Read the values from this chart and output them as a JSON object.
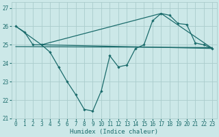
{
  "xlabel": "Humidex (Indice chaleur)",
  "bg_color": "#cce8e8",
  "line_color": "#1a6b6b",
  "grid_color": "#aacccc",
  "xlim": [
    -0.5,
    23.5
  ],
  "ylim": [
    21,
    27.3
  ],
  "yticks": [
    21,
    22,
    23,
    24,
    25,
    26,
    27
  ],
  "xticks": [
    0,
    1,
    2,
    3,
    4,
    5,
    6,
    7,
    8,
    9,
    10,
    11,
    12,
    13,
    14,
    15,
    16,
    17,
    18,
    19,
    20,
    21,
    22,
    23
  ],
  "line1_x": [
    0,
    1,
    2,
    3,
    4,
    5,
    6,
    7,
    8,
    9,
    10,
    11,
    12,
    13,
    14,
    15,
    16,
    17,
    18,
    19,
    20,
    21,
    22,
    23
  ],
  "line1_y": [
    26.0,
    25.7,
    25.0,
    25.0,
    24.6,
    23.8,
    23.0,
    22.3,
    21.5,
    21.4,
    22.5,
    24.4,
    23.8,
    23.9,
    24.8,
    25.0,
    26.3,
    26.7,
    26.6,
    26.15,
    26.1,
    25.1,
    25.0,
    24.8
  ],
  "line2_x": [
    0,
    3,
    23
  ],
  "line2_y": [
    26.0,
    25.0,
    24.8
  ],
  "line3_x": [
    3,
    17,
    23
  ],
  "line3_y": [
    25.0,
    26.7,
    24.8
  ],
  "line4_x": [
    0,
    23
  ],
  "line4_y": [
    24.9,
    24.85
  ],
  "xlabel_fontsize": 6.5,
  "tick_fontsize": 5.5
}
